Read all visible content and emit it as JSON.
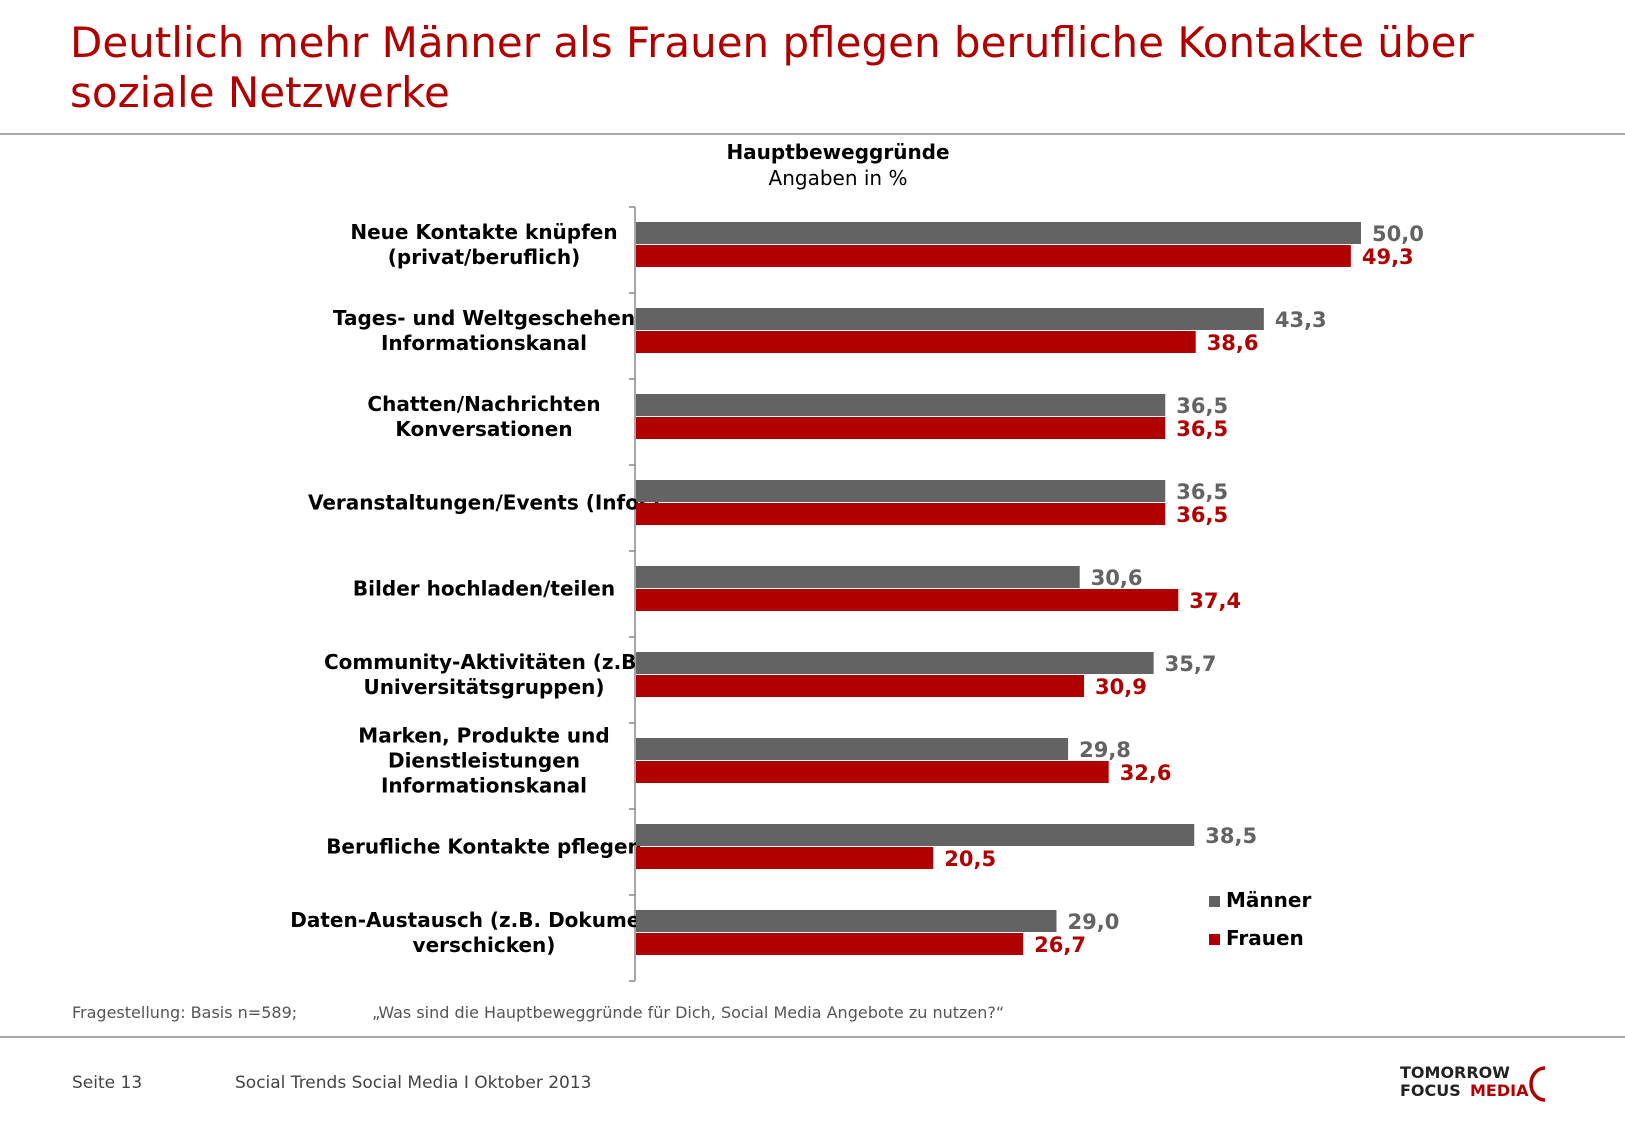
{
  "title": "Deutlich mehr Männer als Frauen pflegen berufliche Kontakte über soziale Netzwerke",
  "chart_data": {
    "type": "bar",
    "orientation": "horizontal",
    "subtitle_bold": "Hauptbeweggründe",
    "subtitle": "Angaben in %",
    "categories": [
      [
        "Neue Kontakte knüpfen",
        "(privat/beruflich)"
      ],
      [
        "Tages- und Weltgeschehen",
        "Informationskanal"
      ],
      [
        "Chatten/Nachrichten",
        "Konversationen"
      ],
      [
        "Veranstaltungen/Events (Infos)"
      ],
      [
        "Bilder hochladen/teilen"
      ],
      [
        "Community-Aktivitäten (z.B.",
        "Universitätsgruppen)"
      ],
      [
        "Marken, Produkte und",
        "Dienstleistungen",
        "Informationskanal"
      ],
      [
        "Berufliche Kontakte pflegen"
      ],
      [
        "Daten-Austausch (z.B. Dokumente",
        "verschicken)"
      ]
    ],
    "series": [
      {
        "name": "Männer",
        "color": "#636363",
        "label_color": "#636363",
        "values": [
          50.0,
          43.3,
          36.5,
          36.5,
          30.6,
          35.7,
          29.8,
          38.5,
          29.0
        ],
        "labels": [
          "50,0",
          "43,3",
          "36,5",
          "36,5",
          "30,6",
          "35,7",
          "29,8",
          "38,5",
          "29,0"
        ]
      },
      {
        "name": "Frauen",
        "color": "#b00000",
        "label_color": "#b00000",
        "values": [
          49.3,
          38.6,
          36.5,
          36.5,
          37.4,
          30.9,
          32.6,
          20.5,
          26.7
        ],
        "labels": [
          "49,3",
          "38,6",
          "36,5",
          "36,5",
          "37,4",
          "30,9",
          "32,6",
          "20,5",
          "26,7"
        ]
      }
    ],
    "xlim": [
      0,
      50
    ],
    "legend_position": "bottom-right",
    "grid": false
  },
  "question": {
    "basis": "Fragestellung: Basis n=589;",
    "text": "„Was sind die Hauptbeweggründe für Dich, Social Media Angebote zu nutzen?“"
  },
  "footer": {
    "page": "Seite 13",
    "doc": "Social Trends Social Media I Oktober 2013"
  },
  "logo": {
    "line1": "TOMORROW",
    "line2a": "FOCUS",
    "line2b": "MEDIA"
  }
}
